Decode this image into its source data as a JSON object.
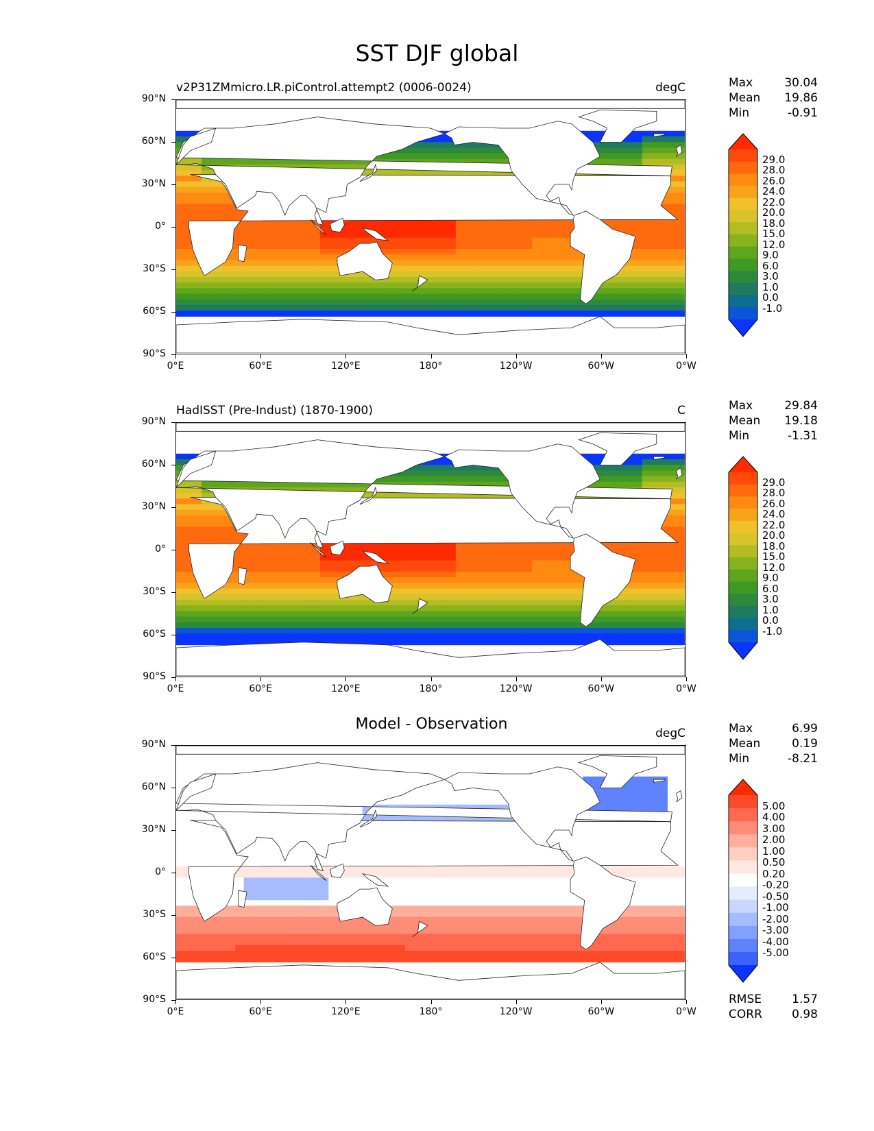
{
  "title": "SST DJF global",
  "axes": {
    "lat_ticks": [
      "90°N",
      "60°N",
      "30°N",
      "0°",
      "30°S",
      "60°S",
      "90°S"
    ],
    "lon_ticks": [
      "0°E",
      "60°E",
      "120°E",
      "180°",
      "120°W",
      "60°W",
      "0°W"
    ]
  },
  "panels": [
    {
      "title": "v2P31ZMmicro.LR.piControl.attempt2 (0006-0024)",
      "units": "degC",
      "stats": [
        {
          "label": "Max",
          "value": "30.04"
        },
        {
          "label": "Mean",
          "value": "19.86"
        },
        {
          "label": "Min",
          "value": "-0.91"
        }
      ],
      "colorbar": {
        "labels": [
          "29.0",
          "28.0",
          "26.0",
          "24.0",
          "22.0",
          "20.0",
          "18.0",
          "15.0",
          "12.0",
          "9.0",
          "6.0",
          "3.0",
          "1.0",
          "0.0",
          "-1.0"
        ],
        "colors": [
          "#ff2a00",
          "#ff4a0a",
          "#ff6a0f",
          "#ff8a12",
          "#f9a31a",
          "#f1c02a",
          "#d6c42a",
          "#b2bd22",
          "#89b31c",
          "#5fa61d",
          "#3f9a24",
          "#2d8a3c",
          "#1f7a62",
          "#0c6f8f",
          "#0a55d8",
          "#0b35ff"
        ]
      }
    },
    {
      "title": "HadISST (Pre-Indust) (1870-1900)",
      "units": "C",
      "stats": [
        {
          "label": "Max",
          "value": "29.84"
        },
        {
          "label": "Mean",
          "value": "19.18"
        },
        {
          "label": "Min",
          "value": "-1.31"
        }
      ],
      "colorbar": {
        "labels": [
          "29.0",
          "28.0",
          "26.0",
          "24.0",
          "22.0",
          "20.0",
          "18.0",
          "15.0",
          "12.0",
          "9.0",
          "6.0",
          "3.0",
          "1.0",
          "0.0",
          "-1.0"
        ],
        "colors": [
          "#ff2a00",
          "#ff4a0a",
          "#ff6a0f",
          "#ff8a12",
          "#f9a31a",
          "#f1c02a",
          "#d6c42a",
          "#b2bd22",
          "#89b31c",
          "#5fa61d",
          "#3f9a24",
          "#2d8a3c",
          "#1f7a62",
          "#0c6f8f",
          "#0a55d8",
          "#0b35ff"
        ]
      }
    },
    {
      "title": "Model - Observation",
      "units": "degC",
      "stats": [
        {
          "label": "Max",
          "value": "6.99"
        },
        {
          "label": "Mean",
          "value": "0.19"
        },
        {
          "label": "Min",
          "value": "-8.21"
        }
      ],
      "colorbar": {
        "labels": [
          "5.00",
          "4.00",
          "3.00",
          "2.00",
          "1.00",
          "0.50",
          "0.20",
          "-0.20",
          "-0.50",
          "-1.00",
          "-2.00",
          "-3.00",
          "-4.00",
          "-5.00"
        ],
        "colors": [
          "#ff2a00",
          "#ff4a2a",
          "#ff6a4f",
          "#ff8c76",
          "#ffae9c",
          "#ffcfc2",
          "#ffe8e2",
          "#ffffff",
          "#e6ecff",
          "#c9d6ff",
          "#a7bcff",
          "#82a0ff",
          "#5f82ff",
          "#3b62ff",
          "#0b35ff"
        ]
      },
      "extra_stats": [
        {
          "label": "RMSE",
          "value": "1.57"
        },
        {
          "label": "CORR",
          "value": "0.98"
        }
      ]
    }
  ],
  "chart_data": [
    {
      "type": "heatmap",
      "title": "v2P31ZMmicro.LR.piControl.attempt2 (0006-0024)",
      "units": "degC",
      "xlim": [
        0,
        360
      ],
      "ylim": [
        -90,
        90
      ],
      "zonal_mean_profile": [
        {
          "lat": 60,
          "value": 6.0
        },
        {
          "lat": 45,
          "value": 12.0
        },
        {
          "lat": 30,
          "value": 20.0
        },
        {
          "lat": 15,
          "value": 25.0
        },
        {
          "lat": 0,
          "value": 27.0
        },
        {
          "lat": -15,
          "value": 26.0
        },
        {
          "lat": -30,
          "value": 20.0
        },
        {
          "lat": -45,
          "value": 12.0
        },
        {
          "lat": -60,
          "value": 3.0
        }
      ]
    },
    {
      "type": "heatmap",
      "title": "HadISST (Pre-Indust) (1870-1900)",
      "units": "C",
      "xlim": [
        0,
        360
      ],
      "ylim": [
        -90,
        90
      ],
      "zonal_mean_profile": [
        {
          "lat": 60,
          "value": 5.0
        },
        {
          "lat": 45,
          "value": 12.0
        },
        {
          "lat": 30,
          "value": 20.0
        },
        {
          "lat": 15,
          "value": 25.0
        },
        {
          "lat": 0,
          "value": 27.0
        },
        {
          "lat": -15,
          "value": 26.0
        },
        {
          "lat": -30,
          "value": 20.0
        },
        {
          "lat": -45,
          "value": 10.0
        },
        {
          "lat": -60,
          "value": 0.0
        }
      ]
    },
    {
      "type": "heatmap",
      "title": "Model - Observation",
      "units": "degC",
      "xlim": [
        0,
        360
      ],
      "ylim": [
        -90,
        90
      ],
      "zonal_mean_profile": [
        {
          "lat": 60,
          "value": 0.5
        },
        {
          "lat": 45,
          "value": -1.0
        },
        {
          "lat": 30,
          "value": -1.0
        },
        {
          "lat": 15,
          "value": -0.5
        },
        {
          "lat": 0,
          "value": 0.2
        },
        {
          "lat": -15,
          "value": 0.5
        },
        {
          "lat": -30,
          "value": 1.0
        },
        {
          "lat": -45,
          "value": 2.0
        },
        {
          "lat": -60,
          "value": 3.0
        }
      ]
    }
  ]
}
